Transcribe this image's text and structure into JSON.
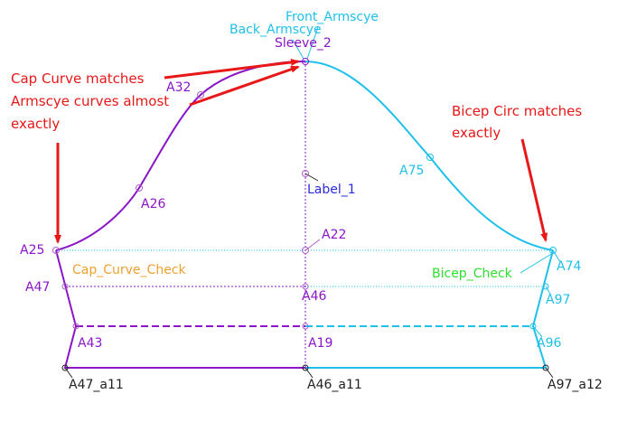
{
  "colors": {
    "back": "#8a14c8",
    "front": "#1ec0ea",
    "center": "#8a14c8",
    "arrow": "#e81818",
    "label_blue": "#2a2ae0",
    "check_orange": "#f0a030",
    "check_green": "#2ee02e",
    "point": "#b060c8",
    "note_text": "#e81818",
    "dark": "#222222"
  },
  "notes": {
    "cap_curve_line1": "Cap Curve matches",
    "cap_curve_line2": "Armscye curves almost",
    "cap_curve_line3": "exactly",
    "bicep_line1": "Bicep Circ matches",
    "bicep_line2": "exactly"
  },
  "labels": {
    "front_armscye": "Front_Armscye",
    "back_armscye": "Back_Armscye",
    "sleeve_2": "Sleeve_2",
    "a32": "A32",
    "a26": "A26",
    "a75": "A75",
    "label_1": "Label_1",
    "a25": "A25",
    "a22": "A22",
    "a74": "A74",
    "cap_curve_check": "Cap_Curve_Check",
    "bicep_check": "Bicep_Check",
    "a47": "A47",
    "a46": "A46",
    "a97": "A97",
    "a43": "A43",
    "a19": "A19",
    "a96": "A96",
    "a47_a11": "A47_a11",
    "a46_a11": "A46_a11",
    "a97_a12": "A97_a12"
  }
}
